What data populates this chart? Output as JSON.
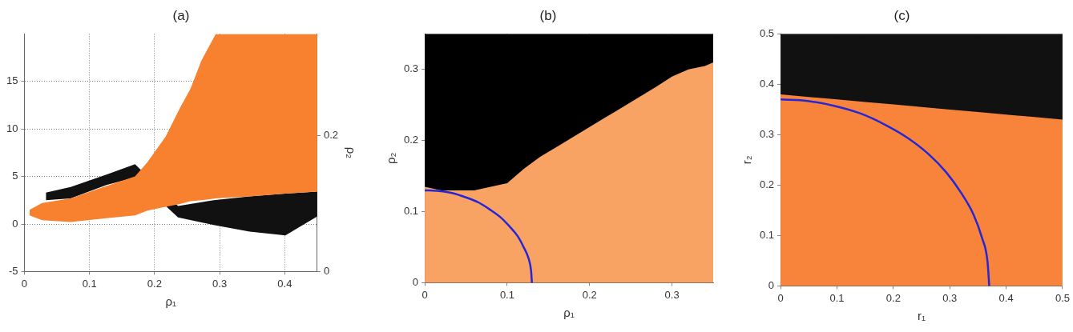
{
  "chart_data": [
    {
      "type": "area",
      "title": "(a)",
      "xlabel": "ρ₁",
      "y2label": "ρ₂",
      "xlim": [
        0,
        0.45
      ],
      "xticks": [
        0,
        0.1,
        0.2,
        0.3,
        0.4
      ],
      "ylim": [
        -5,
        20
      ],
      "yticks": [
        -5,
        0,
        5,
        10,
        15
      ],
      "y2lim": [
        0,
        0.35
      ],
      "y2ticks": [
        0,
        0.2
      ],
      "grid": true,
      "series": [
        {
          "color": "#111111",
          "x": [
            0.033,
            0.071,
            0.126,
            0.17,
            0.236,
            0.291,
            0.346,
            0.401,
            0.45
          ],
          "values": [
            null,
            null,
            null,
            null,
            null,
            null,
            null,
            null,
            null
          ],
          "lower": [
            2.5,
            2.7,
            4.1,
            4.9,
            0.7,
            -0.1,
            -0.8,
            -1.2,
            0.8
          ],
          "upper": [
            3.3,
            3.9,
            5.2,
            6.3,
            1.9,
            2.5,
            2.9,
            3.2,
            3.4
          ]
        },
        {
          "color": "#f7812f",
          "x": [
            0.008,
            0.027,
            0.071,
            0.126,
            0.17,
            0.189,
            0.217,
            0.239,
            0.255,
            0.272,
            0.294,
            0.346,
            0.401,
            0.45
          ],
          "values": [
            null,
            null,
            null,
            null,
            null,
            null,
            null,
            null,
            null,
            null,
            null,
            null,
            null,
            null
          ],
          "lower": [
            0.9,
            0.4,
            0.2,
            0.6,
            0.9,
            1.4,
            1.8,
            2.1,
            2.4,
            2.5,
            2.7,
            2.9,
            3.2,
            3.4
          ],
          "upper": [
            1.5,
            2.2,
            2.7,
            4.0,
            5.0,
            6.5,
            9.2,
            12.2,
            14.2,
            17.2,
            20,
            20,
            20,
            20
          ]
        }
      ]
    },
    {
      "type": "area",
      "stacked": true,
      "title": "(b)",
      "xlabel": "ρ₁",
      "ylabel": "ρ₂",
      "xlim": [
        0,
        0.35
      ],
      "xticks": [
        0,
        0.1,
        0.2,
        0.3
      ],
      "ylim": [
        0,
        0.35
      ],
      "yticks": [
        0,
        0.1,
        0.2,
        0.3
      ],
      "grid": true,
      "series": [
        {
          "color": "#f8a264",
          "x": [
            0,
            0.02,
            0.04,
            0.06,
            0.08,
            0.1,
            0.12,
            0.14,
            0.16,
            0.18,
            0.2,
            0.22,
            0.24,
            0.26,
            0.28,
            0.3,
            0.32,
            0.34,
            0.35
          ],
          "values": [
            0.135,
            0.13,
            0.13,
            0.13,
            0.135,
            0.14,
            0.16,
            0.177,
            0.191,
            0.205,
            0.219,
            0.233,
            0.247,
            0.261,
            0.275,
            0.29,
            0.3,
            0.305,
            0.31
          ]
        },
        {
          "color": "#000000",
          "x": [
            0,
            0.02,
            0.04,
            0.06,
            0.08,
            0.1,
            0.12,
            0.14,
            0.16,
            0.18,
            0.2,
            0.22,
            0.24,
            0.26,
            0.28,
            0.3,
            0.32,
            0.34,
            0.35
          ],
          "values": [
            0.215,
            0.22,
            0.22,
            0.22,
            0.215,
            0.21,
            0.19,
            0.173,
            0.159,
            0.145,
            0.131,
            0.117,
            0.103,
            0.089,
            0.075,
            0.06,
            0.05,
            0.045,
            0.04
          ]
        },
        {
          "type": "line",
          "color": "#2626d9",
          "x": [
            0,
            0.017,
            0.034,
            0.05,
            0.065,
            0.079,
            0.092,
            0.103,
            0.113,
            0.12,
            0.126,
            0.129,
            0.13
          ],
          "values": [
            0.13,
            0.129,
            0.126,
            0.12,
            0.113,
            0.103,
            0.092,
            0.079,
            0.065,
            0.05,
            0.034,
            0.017,
            0
          ]
        }
      ]
    },
    {
      "type": "area",
      "stacked": true,
      "title": "(c)",
      "xlabel": "r₁",
      "ylabel": "r₂",
      "xlim": [
        0,
        0.5
      ],
      "xticks": [
        0,
        0.1,
        0.2,
        0.3,
        0.4,
        0.5
      ],
      "ylim": [
        0,
        0.5
      ],
      "yticks": [
        0,
        0.1,
        0.2,
        0.3,
        0.4,
        0.5
      ],
      "series": [
        {
          "color": "#f7843a",
          "x": [
            0,
            0.05,
            0.1,
            0.15,
            0.2,
            0.25,
            0.3,
            0.35,
            0.4,
            0.45,
            0.5
          ],
          "values": [
            0.38,
            0.375,
            0.37,
            0.365,
            0.36,
            0.355,
            0.35,
            0.345,
            0.34,
            0.335,
            0.33
          ]
        },
        {
          "color": "#111111",
          "x": [
            0,
            0.05,
            0.1,
            0.15,
            0.2,
            0.25,
            0.3,
            0.35,
            0.4,
            0.45,
            0.5
          ],
          "values": [
            0.12,
            0.125,
            0.13,
            0.135,
            0.14,
            0.145,
            0.15,
            0.155,
            0.16,
            0.165,
            0.17
          ]
        },
        {
          "type": "line",
          "color": "#2626d9",
          "x": [
            0,
            0.048,
            0.096,
            0.142,
            0.185,
            0.225,
            0.262,
            0.294,
            0.32,
            0.342,
            0.357,
            0.367,
            0.37
          ],
          "values": [
            0.37,
            0.367,
            0.357,
            0.342,
            0.32,
            0.294,
            0.262,
            0.225,
            0.185,
            0.142,
            0.096,
            0.048,
            0
          ]
        }
      ]
    }
  ]
}
